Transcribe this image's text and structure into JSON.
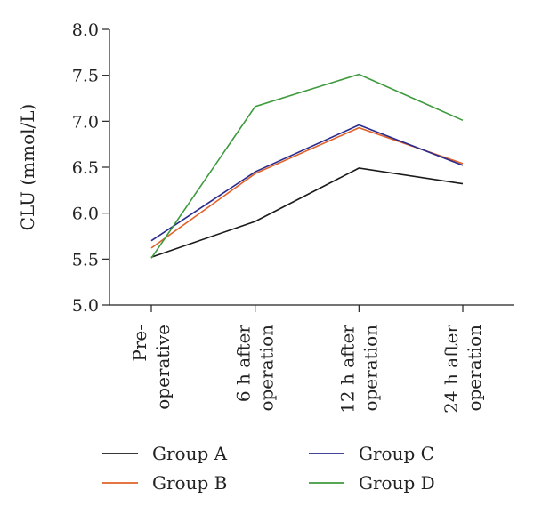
{
  "chart_data": {
    "type": "line",
    "title": "",
    "ylabel": "CLU (mmol/L)",
    "xlabel": "",
    "ylim": [
      5.0,
      8.0
    ],
    "yticks": [
      "5.0",
      "5.5",
      "6.0",
      "6.5",
      "7.0",
      "7.5",
      "8.0"
    ],
    "categories": [
      [
        "Pre-",
        "operative"
      ],
      [
        "6 h after",
        "operation"
      ],
      [
        "12 h after",
        "operation"
      ],
      [
        "24 h after",
        "operation"
      ]
    ],
    "series": [
      {
        "name": "Group A",
        "color": "#1a1a1a",
        "values": [
          5.52,
          5.91,
          6.49,
          6.32
        ]
      },
      {
        "name": "Group B",
        "color": "#e0622a",
        "values": [
          5.62,
          6.43,
          6.93,
          6.54
        ]
      },
      {
        "name": "Group C",
        "color": "#2b2b8c",
        "values": [
          5.7,
          6.45,
          6.96,
          6.52
        ]
      },
      {
        "name": "Group D",
        "color": "#3e9a3e",
        "values": [
          5.51,
          7.16,
          7.51,
          7.01
        ]
      }
    ],
    "grid": false,
    "legend_position": "bottom"
  }
}
